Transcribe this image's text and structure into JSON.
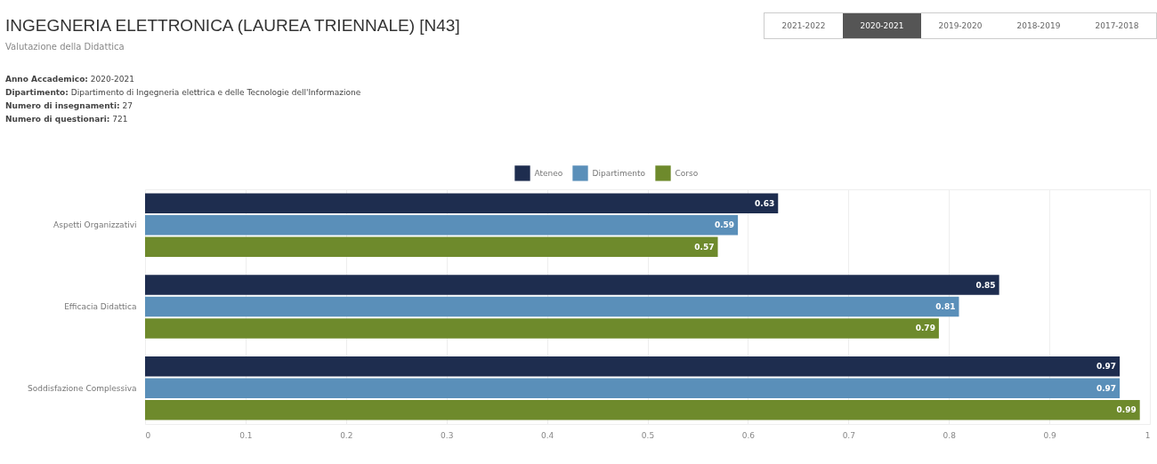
{
  "chart_data": {
    "type": "bar",
    "orientation": "horizontal",
    "title": "INGEGNERIA ELETTRONICA (LAUREA TRIENNALE) [N43]",
    "subtitle": "Valutazione della Didattica",
    "annotations": [
      "Anno Accademico: 2020-2021",
      "Dipartimento: Dipartimento di Ingegneria elettrica e delle Tecnologie dell'Informazione",
      "Numero di insegnamenti: 27",
      "Numero di questionari: 721",
      "2021-2022",
      "2020-2021",
      "2019-2020",
      "2018-2019",
      "2017-2018"
    ],
    "categories": [
      "Aspetti Organizzativi",
      "Efficacia Didattica",
      "Soddisfazione Complessiva"
    ],
    "series": [
      {
        "name": "Ateneo",
        "color": "#1e2d4f",
        "values": [
          0.63,
          0.85,
          0.97
        ]
      },
      {
        "name": "Dipartimento",
        "color": "#5a8fb9",
        "values": [
          0.59,
          0.81,
          0.97
        ]
      },
      {
        "name": "Corso",
        "color": "#6e8a2c",
        "values": [
          0.57,
          0.79,
          0.99
        ]
      }
    ],
    "xlim": [
      0,
      1
    ],
    "xticks": [
      0,
      0.1,
      0.2,
      0.3,
      0.4,
      0.5,
      0.6,
      0.7,
      0.8,
      0.9,
      1
    ],
    "grid": "x",
    "legend": "top",
    "data_labels": true
  }
}
